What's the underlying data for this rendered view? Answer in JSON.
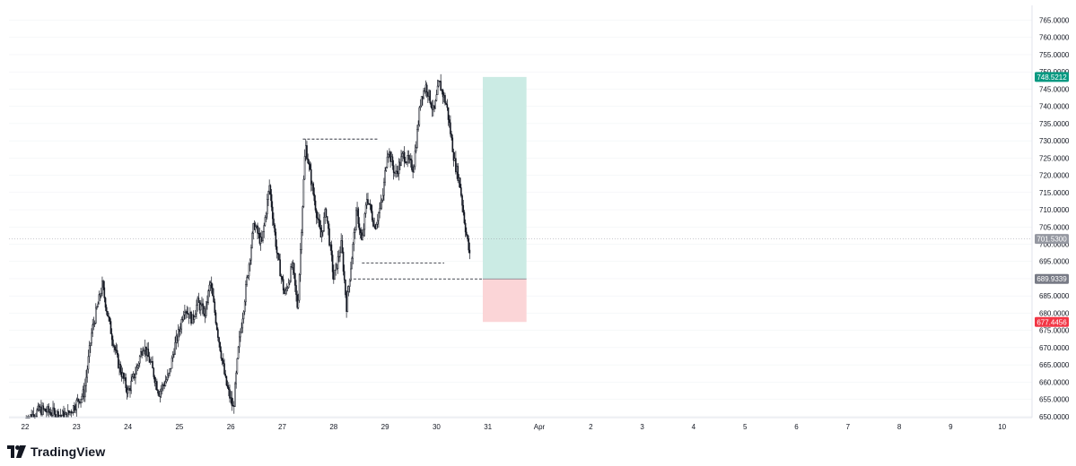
{
  "brand": {
    "name": "TradingView",
    "icon": "tradingview-logo-icon"
  },
  "colors": {
    "candle": "#131722",
    "axis_text": "#131722",
    "grid": "#eef0f3",
    "profit_zone": "#cbebe4",
    "loss_zone": "#fbd5d7",
    "target_badge": "#089981",
    "stop_badge": "#f23645",
    "entry_badge": "#787b86",
    "last_price_badge": "#9598a1"
  },
  "chart_data": {
    "type": "candlestick",
    "title": "",
    "xlabel": "",
    "ylabel": "",
    "ylim": [
      649,
      766
    ],
    "x_ticks": [
      "22",
      "23",
      "24",
      "25",
      "26",
      "27",
      "28",
      "29",
      "30",
      "31",
      "Apr",
      "2",
      "3",
      "4",
      "5",
      "6",
      "7",
      "8",
      "9",
      "10"
    ],
    "y_ticks": [
      "765.0000",
      "760.0000",
      "755.0000",
      "750.0000",
      "745.0000",
      "740.0000",
      "735.0000",
      "730.0000",
      "725.0000",
      "720.0000",
      "715.0000",
      "710.0000",
      "705.0000",
      "700.0000",
      "695.0000",
      "690.0000",
      "685.0000",
      "680.0000",
      "675.0000",
      "670.0000",
      "665.0000",
      "660.0000",
      "655.0000",
      "650.0000"
    ],
    "price_markers": {
      "target": "748.5212",
      "last_price": "701.5300",
      "entry": "689.9339",
      "stop": "677.4456"
    },
    "position_tool": {
      "type": "long",
      "start_day": 30.9,
      "end_day": 31.75,
      "target": 748.5212,
      "entry": 689.9339,
      "stop": 677.4456
    },
    "levels": [
      {
        "price": 730.5,
        "from_day": 27.4,
        "to_day": 28.85
      },
      {
        "price": 694.5,
        "from_day": 28.55,
        "to_day": 30.15
      },
      {
        "price": 689.9339,
        "from_day": 28.3,
        "to_day": 30.9
      }
    ],
    "price_path": [
      [
        22.0,
        649
      ],
      [
        22.3,
        652
      ],
      [
        22.8,
        650
      ],
      [
        23.0,
        654
      ],
      [
        23.15,
        657
      ],
      [
        23.3,
        675
      ],
      [
        23.5,
        688
      ],
      [
        23.65,
        676
      ],
      [
        23.8,
        666
      ],
      [
        24.0,
        657
      ],
      [
        24.15,
        663
      ],
      [
        24.3,
        671
      ],
      [
        24.45,
        665
      ],
      [
        24.6,
        657
      ],
      [
        24.8,
        662
      ],
      [
        24.9,
        670
      ],
      [
        25.0,
        675
      ],
      [
        25.1,
        682
      ],
      [
        25.25,
        678
      ],
      [
        25.35,
        683
      ],
      [
        25.5,
        680
      ],
      [
        25.6,
        689
      ],
      [
        25.75,
        674
      ],
      [
        25.9,
        660
      ],
      [
        26.05,
        652
      ],
      [
        26.15,
        670
      ],
      [
        26.3,
        688
      ],
      [
        26.45,
        706
      ],
      [
        26.6,
        700
      ],
      [
        26.75,
        717
      ],
      [
        26.9,
        697
      ],
      [
        27.05,
        685
      ],
      [
        27.2,
        694
      ],
      [
        27.3,
        681
      ],
      [
        27.45,
        729
      ],
      [
        27.6,
        715
      ],
      [
        27.75,
        702
      ],
      [
        27.85,
        710
      ],
      [
        28.0,
        690
      ],
      [
        28.15,
        700
      ],
      [
        28.25,
        682
      ],
      [
        28.45,
        710
      ],
      [
        28.55,
        700
      ],
      [
        28.65,
        714
      ],
      [
        28.8,
        705
      ],
      [
        28.95,
        713
      ],
      [
        29.05,
        728
      ],
      [
        29.2,
        720
      ],
      [
        29.35,
        726
      ],
      [
        29.55,
        722
      ],
      [
        29.7,
        743
      ],
      [
        29.8,
        746
      ],
      [
        29.95,
        738
      ],
      [
        30.05,
        747
      ],
      [
        30.2,
        740
      ],
      [
        30.35,
        724
      ],
      [
        30.45,
        718
      ],
      [
        30.55,
        706
      ],
      [
        30.65,
        696
      ]
    ]
  }
}
